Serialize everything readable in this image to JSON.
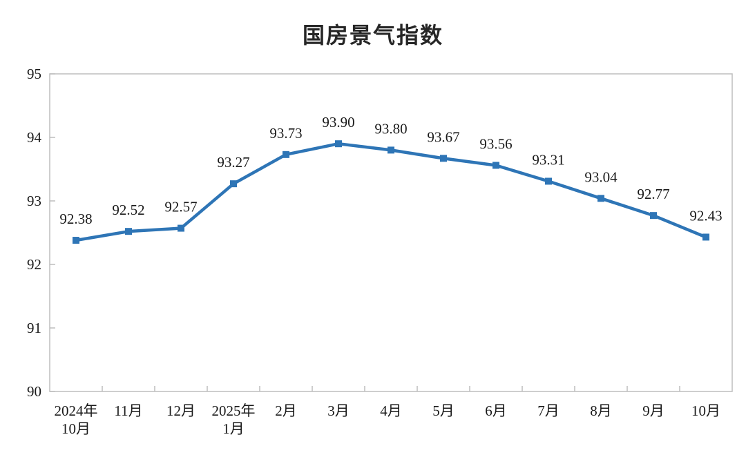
{
  "chart_data": {
    "type": "line",
    "title": "国房景气指数",
    "categories": [
      [
        "2024年",
        "10月"
      ],
      [
        "11月"
      ],
      [
        "12月"
      ],
      [
        "2025年",
        "1月"
      ],
      [
        "2月"
      ],
      [
        "3月"
      ],
      [
        "4月"
      ],
      [
        "5月"
      ],
      [
        "6月"
      ],
      [
        "7月"
      ],
      [
        "8月"
      ],
      [
        "9月"
      ],
      [
        "10月"
      ]
    ],
    "values": [
      92.38,
      92.52,
      92.57,
      93.27,
      93.73,
      93.9,
      93.8,
      93.67,
      93.56,
      93.31,
      93.04,
      92.77,
      92.43
    ],
    "data_labels": [
      "92.38",
      "92.52",
      "92.57",
      "93.27",
      "93.73",
      "93.90",
      "93.80",
      "93.67",
      "93.56",
      "93.31",
      "93.04",
      "92.77",
      "92.43"
    ],
    "ylim": [
      90,
      95
    ],
    "yticks": [
      90,
      91,
      92,
      93,
      94,
      95
    ],
    "grid": false,
    "legend_position": "none",
    "marker": "square",
    "line_color": "#2E75B6",
    "axis_color": "#BDBDBD",
    "text_color": "#1a1a1a"
  }
}
